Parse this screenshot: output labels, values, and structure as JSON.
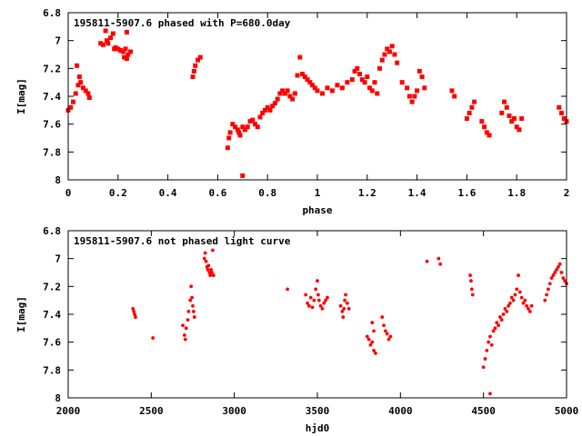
{
  "colors": {
    "points": "#ff0000",
    "frame": "#000000",
    "background": "#ffffff"
  },
  "chart_data": [
    {
      "type": "scatter",
      "title": "195811-5907.6 phased with P=680.0day",
      "xlabel": "phase",
      "ylabel": "I[mag]",
      "xlim": [
        0,
        2
      ],
      "ylim": [
        6.8,
        8
      ],
      "y_inverted": true,
      "grid": false,
      "xticks": [
        "0",
        "0.2",
        "0.4",
        "0.6",
        "0.8",
        "1",
        "1.2",
        "1.4",
        "1.6",
        "1.8",
        "2"
      ],
      "yticks": [
        "6.8",
        "7",
        "7.2",
        "7.4",
        "7.6",
        "7.8",
        "8"
      ],
      "series": [
        {
          "values": [
            [
              0.0,
              7.5
            ],
            [
              0.01,
              7.48
            ],
            [
              0.02,
              7.44
            ],
            [
              0.03,
              7.38
            ],
            [
              0.04,
              7.32
            ],
            [
              0.035,
              7.18
            ],
            [
              0.045,
              7.26
            ],
            [
              0.05,
              7.3
            ],
            [
              0.06,
              7.34
            ],
            [
              0.07,
              7.36
            ],
            [
              0.08,
              7.38
            ],
            [
              0.085,
              7.41
            ],
            [
              0.13,
              7.02
            ],
            [
              0.14,
              7.03
            ],
            [
              0.15,
              6.93
            ],
            [
              0.155,
              7.0
            ],
            [
              0.16,
              7.02
            ],
            [
              0.17,
              6.98
            ],
            [
              0.18,
              6.95
            ],
            [
              0.185,
              7.06
            ],
            [
              0.19,
              7.05
            ],
            [
              0.2,
              7.06
            ],
            [
              0.21,
              7.07
            ],
            [
              0.22,
              7.08
            ],
            [
              0.225,
              7.12
            ],
            [
              0.23,
              7.06
            ],
            [
              0.235,
              6.94
            ],
            [
              0.24,
              7.1
            ],
            [
              0.25,
              7.08
            ],
            [
              0.235,
              7.13
            ],
            [
              0.5,
              7.26
            ],
            [
              0.505,
              7.22
            ],
            [
              0.51,
              7.18
            ],
            [
              0.52,
              7.14
            ],
            [
              0.53,
              7.12
            ],
            [
              0.64,
              7.77
            ],
            [
              0.645,
              7.7
            ],
            [
              0.65,
              7.66
            ],
            [
              0.66,
              7.6
            ],
            [
              0.67,
              7.62
            ],
            [
              0.68,
              7.64
            ],
            [
              0.685,
              7.66
            ],
            [
              0.69,
              7.68
            ],
            [
              0.7,
              7.97
            ],
            [
              0.7,
              7.62
            ],
            [
              0.71,
              7.64
            ],
            [
              0.72,
              7.62
            ],
            [
              0.73,
              7.58
            ],
            [
              0.74,
              7.57
            ],
            [
              0.75,
              7.6
            ],
            [
              0.76,
              7.62
            ],
            [
              0.77,
              7.55
            ],
            [
              0.78,
              7.52
            ],
            [
              0.79,
              7.5
            ],
            [
              0.8,
              7.48
            ],
            [
              0.81,
              7.5
            ],
            [
              0.82,
              7.47
            ],
            [
              0.83,
              7.45
            ],
            [
              0.84,
              7.42
            ],
            [
              0.85,
              7.38
            ],
            [
              0.86,
              7.36
            ],
            [
              0.87,
              7.38
            ],
            [
              0.88,
              7.36
            ],
            [
              0.89,
              7.4
            ],
            [
              0.9,
              7.42
            ],
            [
              0.91,
              7.38
            ],
            [
              0.92,
              7.25
            ],
            [
              0.93,
              7.12
            ],
            [
              0.94,
              7.24
            ],
            [
              0.95,
              7.26
            ],
            [
              0.96,
              7.28
            ],
            [
              0.97,
              7.3
            ],
            [
              0.98,
              7.32
            ],
            [
              0.99,
              7.34
            ],
            [
              1.0,
              7.36
            ],
            [
              1.02,
              7.38
            ],
            [
              1.04,
              7.34
            ],
            [
              1.06,
              7.36
            ],
            [
              1.08,
              7.32
            ],
            [
              1.1,
              7.34
            ],
            [
              1.12,
              7.3
            ],
            [
              1.14,
              7.28
            ],
            [
              1.15,
              7.22
            ],
            [
              1.16,
              7.2
            ],
            [
              1.17,
              7.24
            ],
            [
              1.18,
              7.28
            ],
            [
              1.19,
              7.3
            ],
            [
              1.2,
              7.26
            ],
            [
              1.21,
              7.34
            ],
            [
              1.22,
              7.36
            ],
            [
              1.23,
              7.3
            ],
            [
              1.24,
              7.38
            ],
            [
              1.25,
              7.2
            ],
            [
              1.26,
              7.14
            ],
            [
              1.27,
              7.1
            ],
            [
              1.28,
              7.06
            ],
            [
              1.29,
              7.08
            ],
            [
              1.3,
              7.04
            ],
            [
              1.31,
              7.1
            ],
            [
              1.32,
              7.16
            ],
            [
              1.34,
              7.3
            ],
            [
              1.36,
              7.34
            ],
            [
              1.37,
              7.4
            ],
            [
              1.38,
              7.44
            ],
            [
              1.39,
              7.4
            ],
            [
              1.4,
              7.36
            ],
            [
              1.41,
              7.22
            ],
            [
              1.42,
              7.26
            ],
            [
              1.43,
              7.34
            ],
            [
              1.54,
              7.36
            ],
            [
              1.55,
              7.4
            ],
            [
              1.6,
              7.56
            ],
            [
              1.61,
              7.52
            ],
            [
              1.62,
              7.48
            ],
            [
              1.63,
              7.44
            ],
            [
              1.66,
              7.58
            ],
            [
              1.67,
              7.62
            ],
            [
              1.68,
              7.66
            ],
            [
              1.69,
              7.68
            ],
            [
              1.74,
              7.52
            ],
            [
              1.75,
              7.44
            ],
            [
              1.76,
              7.48
            ],
            [
              1.77,
              7.54
            ],
            [
              1.78,
              7.58
            ],
            [
              1.79,
              7.56
            ],
            [
              1.8,
              7.62
            ],
            [
              1.81,
              7.64
            ],
            [
              1.82,
              7.56
            ],
            [
              1.97,
              7.48
            ],
            [
              1.98,
              7.52
            ],
            [
              1.99,
              7.56
            ],
            [
              2.0,
              7.58
            ]
          ]
        }
      ]
    },
    {
      "type": "scatter",
      "title": "195811-5907.6 not phased light curve",
      "xlabel": "hjd0",
      "ylabel": "I[mag]",
      "xlim": [
        2000,
        5000
      ],
      "ylim": [
        6.8,
        8
      ],
      "y_inverted": true,
      "grid": false,
      "xticks": [
        "2000",
        "2500",
        "3000",
        "3500",
        "4000",
        "4500",
        "5000"
      ],
      "yticks": [
        "6.8",
        "7",
        "7.2",
        "7.4",
        "7.6",
        "7.8",
        "8"
      ],
      "series": [
        {
          "values": [
            [
              2390,
              7.36
            ],
            [
              2395,
              7.38
            ],
            [
              2400,
              7.4
            ],
            [
              2405,
              7.42
            ],
            [
              2510,
              7.57
            ],
            [
              2690,
              7.48
            ],
            [
              2700,
              7.55
            ],
            [
              2705,
              7.58
            ],
            [
              2710,
              7.5
            ],
            [
              2720,
              7.44
            ],
            [
              2725,
              7.38
            ],
            [
              2735,
              7.3
            ],
            [
              2740,
              7.2
            ],
            [
              2745,
              7.28
            ],
            [
              2750,
              7.34
            ],
            [
              2755,
              7.38
            ],
            [
              2760,
              7.42
            ],
            [
              2820,
              7.0
            ],
            [
              2825,
              6.96
            ],
            [
              2830,
              7.02
            ],
            [
              2835,
              7.06
            ],
            [
              2840,
              7.08
            ],
            [
              2845,
              7.05
            ],
            [
              2850,
              7.1
            ],
            [
              2855,
              7.12
            ],
            [
              2860,
              7.08
            ],
            [
              2865,
              7.1
            ],
            [
              2870,
              6.94
            ],
            [
              2875,
              7.12
            ],
            [
              3320,
              7.22
            ],
            [
              3430,
              7.26
            ],
            [
              3440,
              7.32
            ],
            [
              3450,
              7.34
            ],
            [
              3460,
              7.28
            ],
            [
              3470,
              7.35
            ],
            [
              3480,
              7.3
            ],
            [
              3490,
              7.22
            ],
            [
              3500,
              7.16
            ],
            [
              3505,
              7.26
            ],
            [
              3510,
              7.3
            ],
            [
              3520,
              7.34
            ],
            [
              3530,
              7.36
            ],
            [
              3540,
              7.32
            ],
            [
              3550,
              7.3
            ],
            [
              3560,
              7.28
            ],
            [
              3640,
              7.34
            ],
            [
              3650,
              7.38
            ],
            [
              3655,
              7.42
            ],
            [
              3660,
              7.36
            ],
            [
              3665,
              7.3
            ],
            [
              3670,
              7.26
            ],
            [
              3680,
              7.32
            ],
            [
              3690,
              7.36
            ],
            [
              3800,
              7.56
            ],
            [
              3810,
              7.58
            ],
            [
              3820,
              7.62
            ],
            [
              3830,
              7.6
            ],
            [
              3840,
              7.66
            ],
            [
              3850,
              7.68
            ],
            [
              3840,
              7.52
            ],
            [
              3830,
              7.46
            ],
            [
              3890,
              7.42
            ],
            [
              3900,
              7.48
            ],
            [
              3910,
              7.52
            ],
            [
              3920,
              7.54
            ],
            [
              3930,
              7.58
            ],
            [
              3940,
              7.56
            ],
            [
              4160,
              7.02
            ],
            [
              4230,
              7.0
            ],
            [
              4240,
              7.04
            ],
            [
              4420,
              7.12
            ],
            [
              4425,
              7.16
            ],
            [
              4430,
              7.22
            ],
            [
              4435,
              7.26
            ],
            [
              4500,
              7.78
            ],
            [
              4510,
              7.72
            ],
            [
              4520,
              7.66
            ],
            [
              4530,
              7.6
            ],
            [
              4540,
              7.56
            ],
            [
              4550,
              7.62
            ],
            [
              4560,
              7.52
            ],
            [
              4570,
              7.5
            ],
            [
              4580,
              7.46
            ],
            [
              4590,
              7.48
            ],
            [
              4600,
              7.42
            ],
            [
              4610,
              7.44
            ],
            [
              4620,
              7.4
            ],
            [
              4630,
              7.36
            ],
            [
              4640,
              7.38
            ],
            [
              4650,
              7.34
            ],
            [
              4660,
              7.32
            ],
            [
              4670,
              7.28
            ],
            [
              4680,
              7.3
            ],
            [
              4690,
              7.26
            ],
            [
              4700,
              7.22
            ],
            [
              4710,
              7.12
            ],
            [
              4720,
              7.24
            ],
            [
              4730,
              7.28
            ],
            [
              4740,
              7.32
            ],
            [
              4750,
              7.3
            ],
            [
              4760,
              7.34
            ],
            [
              4770,
              7.36
            ],
            [
              4780,
              7.38
            ],
            [
              4790,
              7.34
            ],
            [
              4540,
              7.97
            ],
            [
              4870,
              7.3
            ],
            [
              4880,
              7.26
            ],
            [
              4890,
              7.22
            ],
            [
              4900,
              7.18
            ],
            [
              4910,
              7.14
            ],
            [
              4920,
              7.12
            ],
            [
              4930,
              7.1
            ],
            [
              4940,
              7.08
            ],
            [
              4950,
              7.06
            ],
            [
              4960,
              7.04
            ],
            [
              4970,
              7.1
            ],
            [
              4980,
              7.14
            ],
            [
              4990,
              7.16
            ],
            [
              5000,
              7.18
            ]
          ]
        }
      ]
    }
  ]
}
